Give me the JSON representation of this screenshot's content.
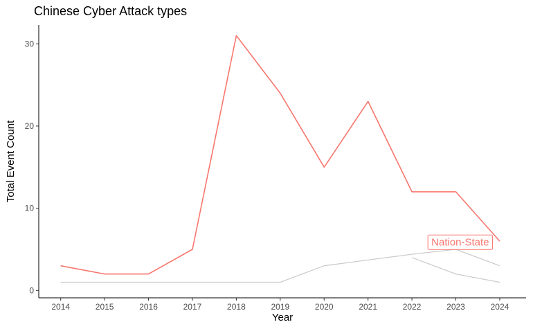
{
  "chart_data": {
    "type": "line",
    "title": "Chinese Cyber Attack types",
    "xlabel": "Year",
    "ylabel": "Total Event Count",
    "x": [
      2014,
      2015,
      2016,
      2017,
      2018,
      2019,
      2020,
      2021,
      2022,
      2023,
      2024
    ],
    "xticks": [
      "2014",
      "2015",
      "2016",
      "2017",
      "2018",
      "2019",
      "2020",
      "2021",
      "2022",
      "2023",
      "2024"
    ],
    "yticks": [
      0,
      10,
      20,
      30
    ],
    "ylim": [
      0,
      31
    ],
    "grid": false,
    "series": [
      {
        "name": "Nation-State",
        "highlight": true,
        "color": "#f8766d",
        "x": [
          2014,
          2015,
          2016,
          2017,
          2018,
          2019,
          2020,
          2021,
          2022,
          2023,
          2024
        ],
        "values": [
          3,
          2,
          2,
          5,
          31,
          24,
          15,
          23,
          12,
          12,
          6
        ]
      },
      {
        "highlight": false,
        "color": "#cccccc",
        "x": [
          2014,
          2015,
          2016,
          2017,
          2018,
          2019,
          2020,
          2021,
          2022,
          2023,
          2024
        ],
        "values": [
          1,
          1,
          1,
          1,
          1,
          1,
          3,
          3.7,
          4.4,
          5,
          3
        ]
      },
      {
        "highlight": false,
        "color": "#cccccc",
        "x": [
          2022,
          2023,
          2024
        ],
        "values": [
          4,
          2,
          1
        ]
      }
    ],
    "annotation": {
      "text": "Nation-State",
      "x": 2023.1,
      "y": 5.9,
      "color": "#f8766d"
    }
  }
}
